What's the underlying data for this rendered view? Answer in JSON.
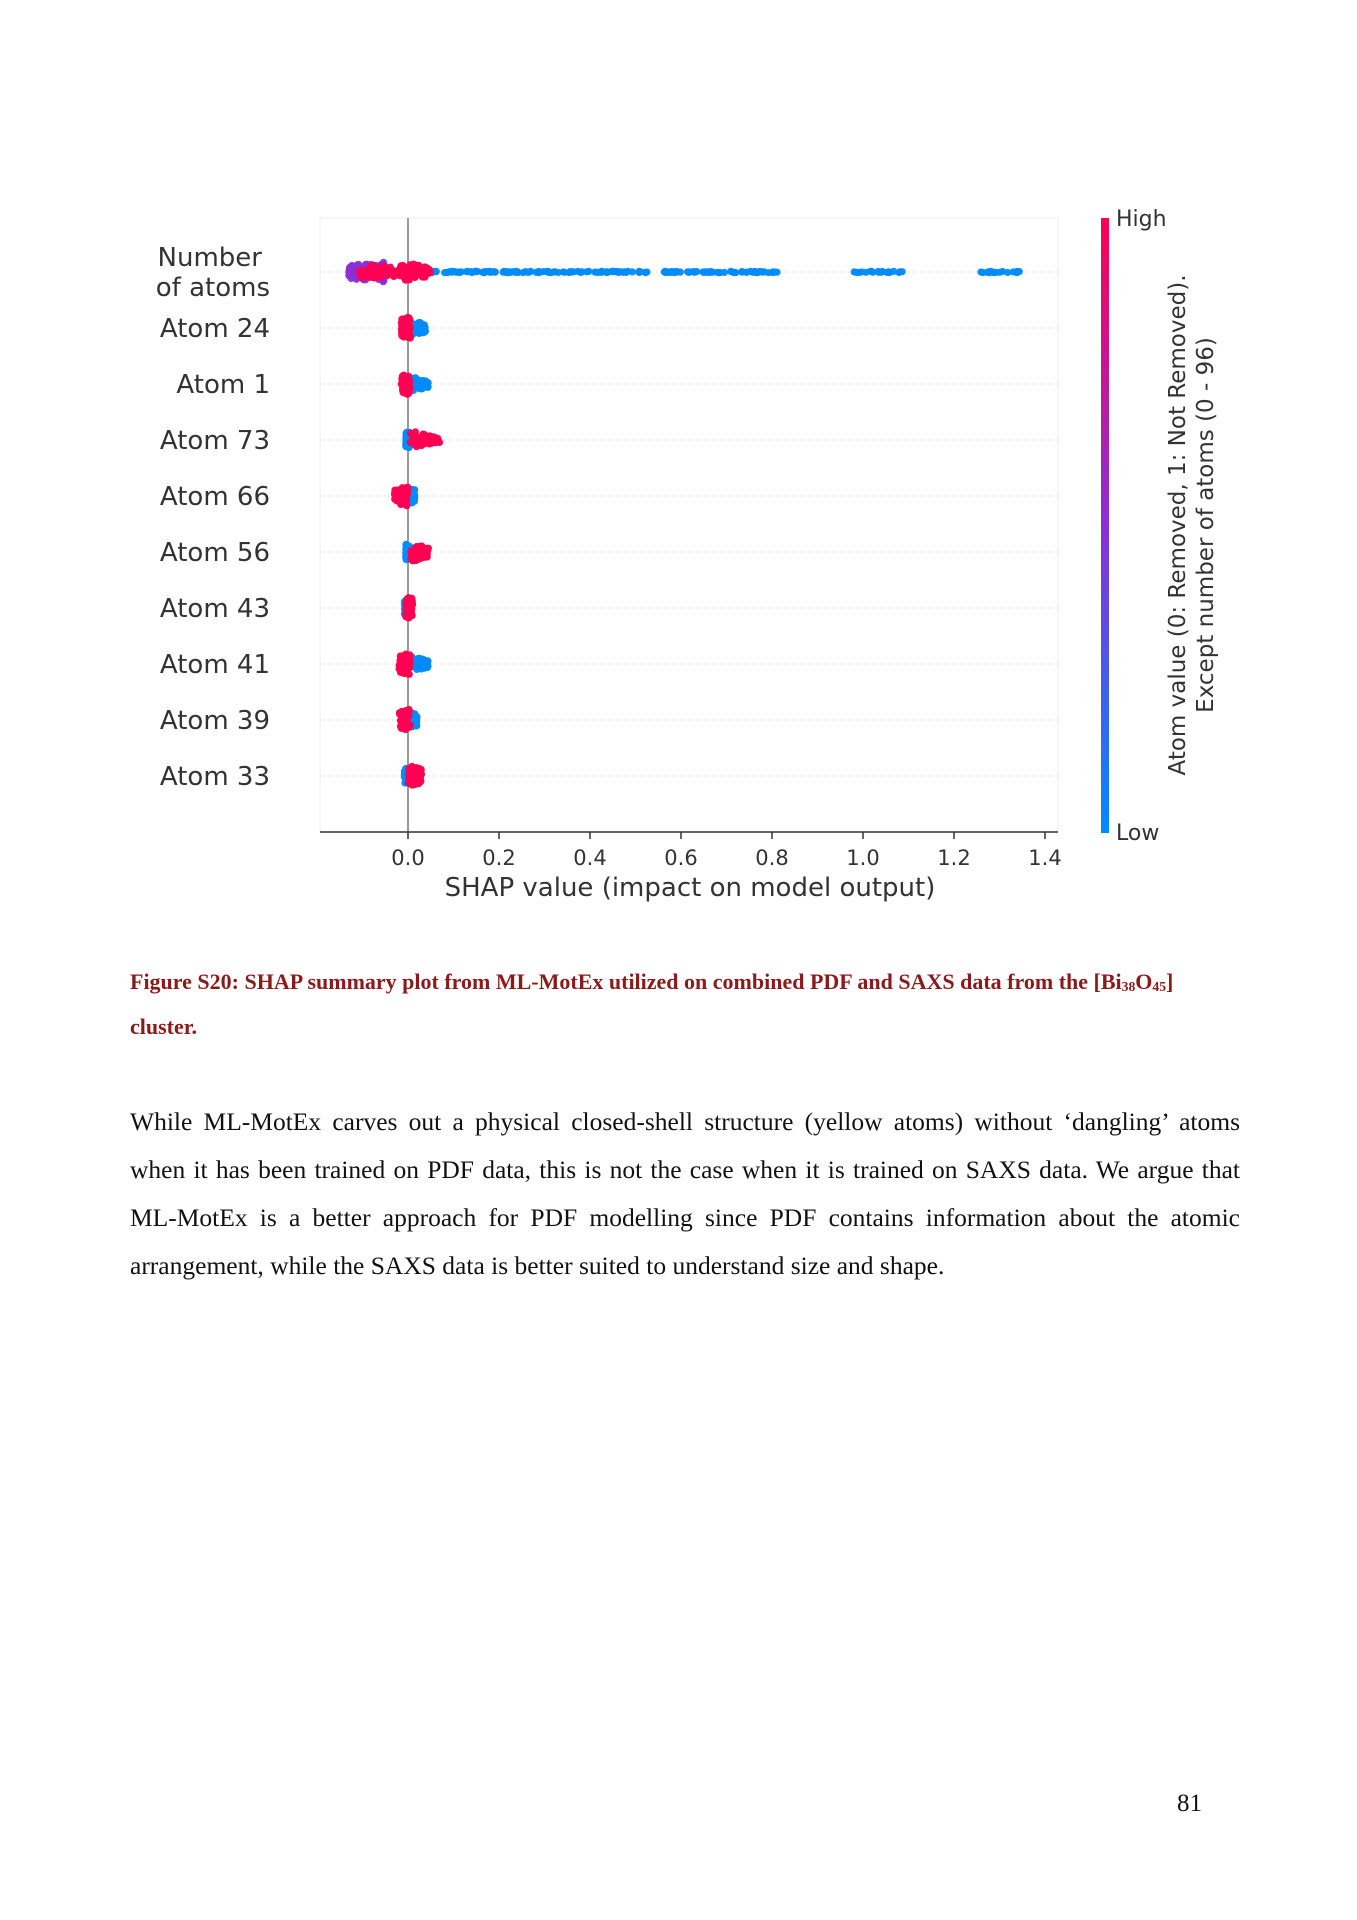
{
  "chart_data": {
    "type": "scatter",
    "subtype": "shap-beeswarm",
    "xlabel": "SHAP value (impact on model output)",
    "xlim": [
      -0.2,
      1.43
    ],
    "x_ticks": [
      "0.0",
      "0.2",
      "0.4",
      "0.6",
      "0.8",
      "1.0",
      "1.2",
      "1.4"
    ],
    "x_tick_values": [
      0.0,
      0.2,
      0.4,
      0.6,
      0.8,
      1.0,
      1.2,
      1.4
    ],
    "vertical_line_at": 0.0,
    "grid": "horizontal dotted",
    "features": [
      {
        "label": "Number of atoms",
        "label_lines": [
          "Number",
          "of atoms"
        ],
        "high_range": [
          -0.13,
          0.05
        ],
        "low_range": [
          0.0,
          1.35
        ],
        "low_gaps": [
          [
            0.53,
            0.56
          ],
          [
            0.82,
            0.98
          ],
          [
            1.09,
            1.25
          ]
        ],
        "mixed_cluster": [
          -0.13,
          -0.05
        ]
      },
      {
        "label": "Atom 24",
        "label_lines": [
          "Atom 24"
        ],
        "high_range": [
          -0.015,
          0.005
        ],
        "low_range": [
          0.005,
          0.04
        ]
      },
      {
        "label": "Atom 1",
        "label_lines": [
          "Atom 1"
        ],
        "high_range": [
          -0.015,
          0.005
        ],
        "low_range": [
          0.005,
          0.045
        ]
      },
      {
        "label": "Atom 73",
        "label_lines": [
          "Atom 73"
        ],
        "high_range": [
          0.005,
          0.07
        ],
        "low_range": [
          -0.005,
          0.005
        ]
      },
      {
        "label": "Atom 66",
        "label_lines": [
          "Atom 66"
        ],
        "high_range": [
          -0.03,
          0.0
        ],
        "low_range": [
          0.0,
          0.015
        ]
      },
      {
        "label": "Atom 56",
        "label_lines": [
          "Atom 56"
        ],
        "high_range": [
          0.005,
          0.045
        ],
        "low_range": [
          -0.005,
          0.005
        ]
      },
      {
        "label": "Atom 43",
        "label_lines": [
          "Atom 43"
        ],
        "high_range": [
          -0.005,
          0.01
        ],
        "low_range": [
          -0.008,
          0.005
        ]
      },
      {
        "label": "Atom 41",
        "label_lines": [
          "Atom 41"
        ],
        "high_range": [
          -0.02,
          0.005
        ],
        "low_range": [
          0.005,
          0.045
        ]
      },
      {
        "label": "Atom 39",
        "label_lines": [
          "Atom 39"
        ],
        "high_range": [
          -0.02,
          0.005
        ],
        "low_range": [
          0.0,
          0.02
        ]
      },
      {
        "label": "Atom 33",
        "label_lines": [
          "Atom 33"
        ],
        "high_range": [
          0.0,
          0.03
        ],
        "low_range": [
          -0.008,
          0.008
        ]
      }
    ],
    "colorbar": {
      "high_label": "High",
      "low_label": "Low",
      "label_lines": [
        "Atom value (0: Removed, 1: Not Removed).",
        "Except number of atoms (0 - 96)"
      ],
      "colors": {
        "high": "#ff0052",
        "mid": "#8b2fd6",
        "low": "#008bfb"
      }
    }
  },
  "caption": {
    "text": "Figure S20: SHAP summary plot from ML-MotEx utilized on combined PDF and SAXS data from the [Bi",
    "sub1": "38",
    "mid": "O",
    "sub2": "45",
    "tail": "] cluster."
  },
  "body_text": "While ML-MotEx carves out a physical closed-shell structure (yellow atoms) without ‘dangling’ atoms when it has been trained on PDF data, this is not the case when it is trained on SAXS data. We argue that ML-MotEx is a better approach for PDF modelling since PDF contains information about the atomic arrangement, while the SAXS data is better suited to understand size and shape.",
  "page_number": "81"
}
